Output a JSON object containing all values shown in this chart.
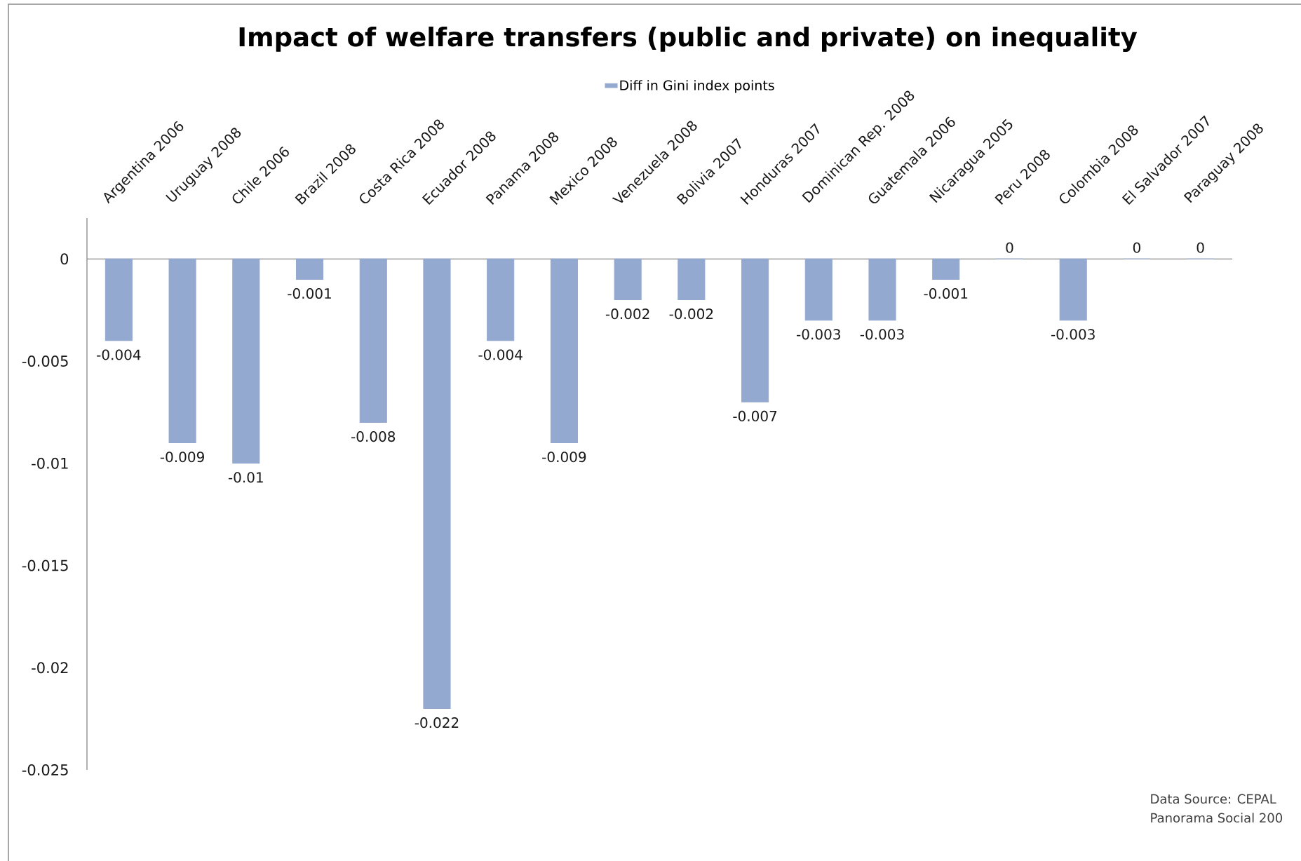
{
  "chart_data": {
    "type": "bar",
    "title": "Impact of welfare transfers (public and private) on inequality",
    "categories": [
      "Argentina 2006",
      "Uruguay 2008",
      "Chile 2006",
      "Brazil 2008",
      "Costa Rica 2008",
      "Ecuador 2008",
      "Panama 2008",
      "Mexico 2008",
      "Venezuela 2008",
      "Bolivia 2007",
      "Honduras 2007",
      "Dominican Rep. 2008",
      "Guatemala 2006",
      "Nicaragua 2005",
      "Peru 2008",
      "Colombia 2008",
      "El Salvador 2007",
      "Paraguay 2008"
    ],
    "series": [
      {
        "name": "Diff in Gini index points",
        "color": "#94a9d0",
        "values": [
          -0.004,
          -0.009,
          -0.01,
          -0.001,
          -0.008,
          -0.022,
          -0.004,
          -0.009,
          -0.002,
          -0.002,
          -0.007,
          -0.003,
          -0.003,
          -0.001,
          0,
          -0.003,
          0,
          0
        ]
      }
    ],
    "ylim": [
      -0.025,
      0.002
    ],
    "yticks": [
      -0.025,
      -0.02,
      -0.015,
      -0.01,
      -0.005,
      0
    ],
    "data_labels": true,
    "legend": "top",
    "annotations": [
      "Data Source: CEPAL",
      "Panorama Social 200"
    ]
  }
}
